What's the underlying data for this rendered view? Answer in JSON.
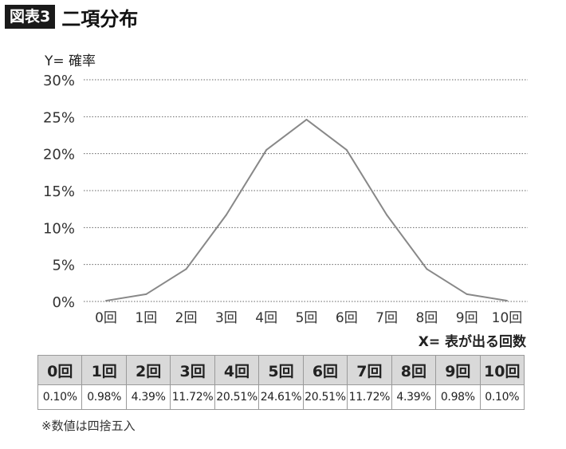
{
  "figure_label": "図表3",
  "figure_title": "二項分布",
  "chart_data": {
    "type": "line",
    "title": "二項分布",
    "ylabel": "Y= 確率",
    "xlabel": "X= 表が出る回数",
    "ylim": [
      0,
      30
    ],
    "yticks": [
      "0%",
      "5%",
      "10%",
      "15%",
      "20%",
      "25%",
      "30%"
    ],
    "categories": [
      "0回",
      "1回",
      "2回",
      "3回",
      "4回",
      "5回",
      "6回",
      "7回",
      "8回",
      "9回",
      "10回"
    ],
    "values": [
      0.1,
      0.98,
      4.39,
      11.72,
      20.51,
      24.61,
      20.51,
      11.72,
      4.39,
      0.98,
      0.1
    ],
    "grid": "horizontal dotted",
    "line_color": "#888888"
  },
  "table": {
    "headers": [
      "0回",
      "1回",
      "2回",
      "3回",
      "4回",
      "5回",
      "6回",
      "7回",
      "8回",
      "9回",
      "10回"
    ],
    "cells": [
      "0.10%",
      "0.98%",
      "4.39%",
      "11.72%",
      "20.51%",
      "24.61%",
      "20.51%",
      "11.72%",
      "4.39%",
      "0.98%",
      "0.10%"
    ]
  },
  "footnote": "※数値は四捨五入"
}
